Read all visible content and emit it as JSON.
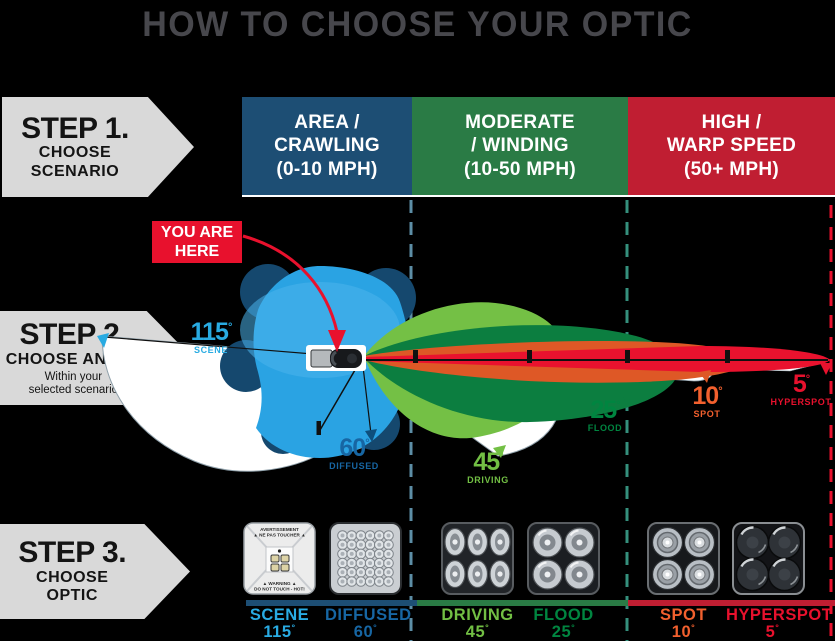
{
  "title": "HOW TO CHOOSE YOUR OPTIC",
  "deg": "°",
  "steps": {
    "step1": {
      "title": "STEP 1.",
      "line1": "CHOOSE",
      "line2": "SCENARIO"
    },
    "step2": {
      "title": "STEP 2.",
      "line1": "CHOOSE ANGLE",
      "note1": "Within your",
      "note2": "selected scenario"
    },
    "step3": {
      "title": "STEP 3.",
      "line1": "CHOOSE",
      "line2": "OPTIC"
    }
  },
  "scenarios": [
    {
      "lines": [
        "AREA /",
        "CRAWLING",
        "(0-10 MPH)"
      ],
      "color": "#1d4e74"
    },
    {
      "lines": [
        "MODERATE",
        "/ WINDING",
        "(10-50 MPH)"
      ],
      "color": "#2a7b45"
    },
    {
      "lines": [
        "HIGH /",
        "WARP SPEED",
        "(50+ MPH)"
      ],
      "color": "#c01e32"
    }
  ],
  "you_are_here": {
    "line1": "YOU ARE",
    "line2": "HERE",
    "color": "#e8112d"
  },
  "angles": [
    {
      "value": "115",
      "name": "SCENE",
      "color": "#29abe2"
    },
    {
      "value": "60",
      "name": "DIFFUSED",
      "color": "#1766a3"
    },
    {
      "value": "45",
      "name": "DRIVING",
      "color": "#72bf44"
    },
    {
      "value": "25",
      "name": "FLOOD",
      "color": "#008540"
    },
    {
      "value": "10",
      "name": "SPOT",
      "color": "#f2602e"
    },
    {
      "value": "5",
      "name": "HYPERSPOT",
      "color": "#e8112d"
    }
  ],
  "scene_optic_warning": {
    "top1": "AVERTISSEMENT",
    "top2": "▲ NE PAS TOUCHER ▲",
    "bottom1": "▲ WARNING ▲",
    "bottom2": "DO NOT TOUCH - HOT!"
  }
}
